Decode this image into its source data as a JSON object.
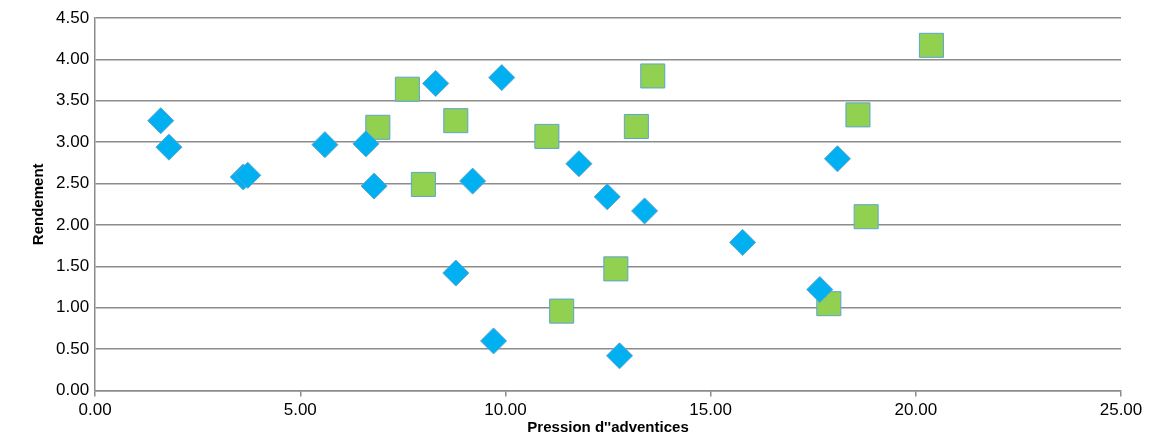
{
  "chart_data": {
    "type": "scatter",
    "xlabel": "Pression d''adventices",
    "ylabel": "Rendement",
    "xlim": [
      0,
      25
    ],
    "xticks": [
      {
        "value": 0,
        "label": "0.00"
      },
      {
        "value": 5,
        "label": "5.00"
      },
      {
        "value": 10,
        "label": "10.00"
      },
      {
        "value": 15,
        "label": "15.00"
      },
      {
        "value": 20,
        "label": "20.00"
      },
      {
        "value": 25,
        "label": "25.00"
      }
    ],
    "ylim": [
      0,
      4.5
    ],
    "yticks": [
      {
        "value": 0,
        "label": "0.00"
      },
      {
        "value": 0.5,
        "label": "0.50"
      },
      {
        "value": 1,
        "label": "1.00"
      },
      {
        "value": 1.5,
        "label": "1.50"
      },
      {
        "value": 2,
        "label": "2.00"
      },
      {
        "value": 2.5,
        "label": "2.50"
      },
      {
        "value": 3,
        "label": "3.00"
      },
      {
        "value": 3.5,
        "label": "3.50"
      },
      {
        "value": 4,
        "label": "4.00"
      },
      {
        "value": 4.5,
        "label": "4.50"
      }
    ],
    "grid": "y",
    "legend": false,
    "series": [
      {
        "color": "#00b0f0",
        "marker": "diamond",
        "x": [
          1.6,
          1.8,
          3.61,
          3.72,
          5.6,
          6.6,
          6.8,
          8.3,
          8.79,
          9.2,
          9.71,
          9.91,
          11.79,
          12.48,
          13.39,
          15.78,
          18.09,
          17.66,
          12.78
        ],
        "values": [
          3.26,
          2.94,
          2.58,
          2.6,
          2.97,
          2.98,
          2.47,
          3.71,
          1.42,
          2.53,
          0.6,
          3.78,
          2.74,
          2.34,
          2.17,
          1.79,
          2.8,
          1.22,
          0.42
        ]
      },
      {
        "color": "#92d050",
        "marker": "square",
        "x": [
          6.89,
          7.61,
          8.0,
          8.79,
          11.01,
          11.37,
          13.59,
          13.19,
          12.69,
          20.38,
          18.59,
          18.79,
          17.88
        ],
        "values": [
          3.18,
          3.64,
          2.49,
          3.26,
          3.07,
          0.96,
          3.8,
          3.19,
          1.47,
          4.17,
          3.33,
          2.1,
          1.05
        ]
      }
    ]
  }
}
